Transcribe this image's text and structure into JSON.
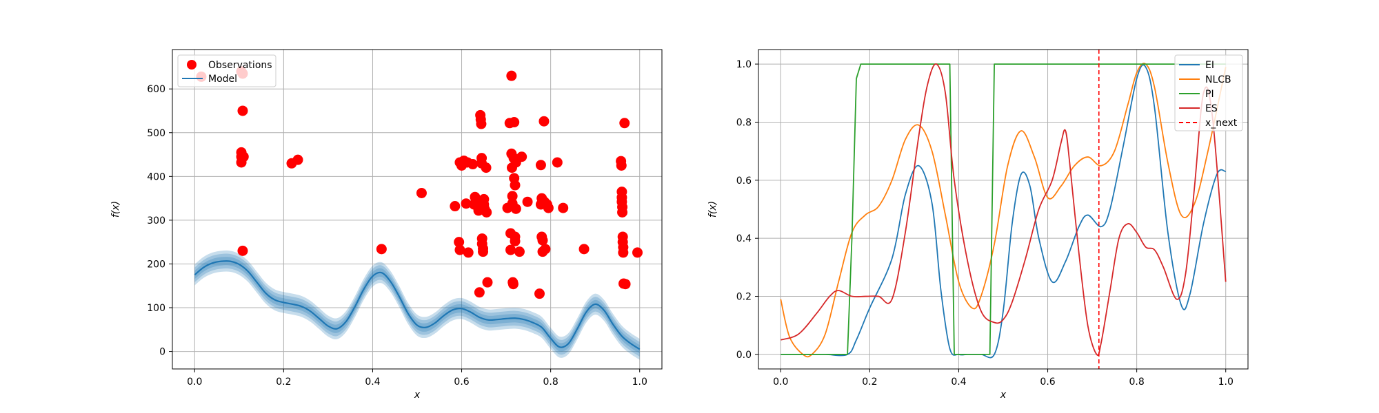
{
  "chart_data": [
    {
      "type": "scatter",
      "xlabel": "x",
      "ylabel": "f(x)",
      "xlim": [
        -0.05,
        1.05
      ],
      "ylim": [
        -40,
        690
      ],
      "xticks": [
        0.0,
        0.2,
        0.4,
        0.6,
        0.8,
        1.0
      ],
      "xtick_labels": [
        "0.0",
        "0.2",
        "0.4",
        "0.6",
        "0.8",
        "1.0"
      ],
      "yticks": [
        0,
        100,
        200,
        300,
        400,
        500,
        600
      ],
      "ytick_labels": [
        "0",
        "100",
        "200",
        "300",
        "400",
        "500",
        "600"
      ],
      "grid": true,
      "legend_position": "top-left",
      "series": [
        {
          "name": "Observations",
          "kind": "scatter",
          "color": "#ff0000",
          "points": [
            [
              0.015,
              628
            ],
            [
              0.105,
              640
            ],
            [
              0.108,
              635
            ],
            [
              0.108,
              550
            ],
            [
              0.105,
              455
            ],
            [
              0.105,
              445
            ],
            [
              0.11,
              445
            ],
            [
              0.105,
              432
            ],
            [
              0.108,
              230
            ],
            [
              0.218,
              430
            ],
            [
              0.232,
              438
            ],
            [
              0.42,
              234
            ],
            [
              0.51,
              362
            ],
            [
              0.585,
              332
            ],
            [
              0.594,
              250
            ],
            [
              0.596,
              232
            ],
            [
              0.596,
              432
            ],
            [
              0.6,
              425
            ],
            [
              0.605,
              436
            ],
            [
              0.61,
              338
            ],
            [
              0.613,
              432
            ],
            [
              0.615,
              226
            ],
            [
              0.625,
              428
            ],
            [
              0.628,
              336
            ],
            [
              0.63,
              353
            ],
            [
              0.632,
              344
            ],
            [
              0.635,
              332
            ],
            [
              0.638,
              322
            ],
            [
              0.64,
              135
            ],
            [
              0.642,
              540
            ],
            [
              0.643,
              530
            ],
            [
              0.644,
              520
            ],
            [
              0.645,
              430
            ],
            [
              0.645,
              442
            ],
            [
              0.646,
              258
            ],
            [
              0.646,
              246
            ],
            [
              0.648,
              235
            ],
            [
              0.648,
              228
            ],
            [
              0.65,
              348
            ],
            [
              0.65,
              336
            ],
            [
              0.652,
              325
            ],
            [
              0.655,
              420
            ],
            [
              0.656,
              318
            ],
            [
              0.658,
              158
            ],
            [
              0.703,
              328
            ],
            [
              0.708,
              522
            ],
            [
              0.71,
              270
            ],
            [
              0.71,
              232
            ],
            [
              0.712,
              630
            ],
            [
              0.712,
              452
            ],
            [
              0.713,
              420
            ],
            [
              0.714,
              355
            ],
            [
              0.714,
              338
            ],
            [
              0.715,
              158
            ],
            [
              0.716,
              154
            ],
            [
              0.717,
              442
            ],
            [
              0.718,
              524
            ],
            [
              0.718,
              396
            ],
            [
              0.72,
              380
            ],
            [
              0.72,
              262
            ],
            [
              0.72,
              252
            ],
            [
              0.722,
              432
            ],
            [
              0.722,
              326
            ],
            [
              0.73,
              228
            ],
            [
              0.735,
              445
            ],
            [
              0.748,
              342
            ],
            [
              0.775,
              132
            ],
            [
              0.778,
              426
            ],
            [
              0.778,
              336
            ],
            [
              0.78,
              350
            ],
            [
              0.78,
              262
            ],
            [
              0.782,
              254
            ],
            [
              0.782,
              228
            ],
            [
              0.785,
              526
            ],
            [
              0.786,
              342
            ],
            [
              0.788,
              234
            ],
            [
              0.792,
              336
            ],
            [
              0.795,
              328
            ],
            [
              0.815,
              432
            ],
            [
              0.828,
              328
            ],
            [
              0.875,
              234
            ],
            [
              0.958,
              435
            ],
            [
              0.959,
              425
            ],
            [
              0.96,
              365
            ],
            [
              0.96,
              352
            ],
            [
              0.96,
              342
            ],
            [
              0.961,
              330
            ],
            [
              0.961,
              318
            ],
            [
              0.962,
              262
            ],
            [
              0.962,
              250
            ],
            [
              0.963,
              238
            ],
            [
              0.963,
              226
            ],
            [
              0.964,
              155
            ],
            [
              0.966,
              522
            ],
            [
              0.968,
              154
            ],
            [
              0.995,
              226
            ]
          ]
        },
        {
          "name": "Model",
          "kind": "line",
          "color": "#1f77b4",
          "confidence_band_color": "#1f77b4",
          "x": [
            0.0,
            0.02,
            0.04,
            0.06,
            0.08,
            0.1,
            0.12,
            0.14,
            0.16,
            0.18,
            0.2,
            0.22,
            0.24,
            0.26,
            0.28,
            0.3,
            0.32,
            0.34,
            0.36,
            0.38,
            0.4,
            0.42,
            0.44,
            0.46,
            0.48,
            0.5,
            0.52,
            0.54,
            0.56,
            0.58,
            0.6,
            0.62,
            0.64,
            0.66,
            0.68,
            0.7,
            0.72,
            0.74,
            0.76,
            0.78,
            0.8,
            0.82,
            0.84,
            0.86,
            0.88,
            0.9,
            0.92,
            0.94,
            0.96,
            0.98,
            1.0
          ],
          "y": [
            175,
            192,
            202,
            206,
            206,
            199,
            183,
            158,
            133,
            118,
            112,
            108,
            103,
            92,
            75,
            58,
            52,
            68,
            102,
            142,
            172,
            180,
            160,
            125,
            86,
            60,
            55,
            65,
            82,
            95,
            98,
            90,
            78,
            72,
            73,
            75,
            76,
            73,
            66,
            55,
            30,
            10,
            18,
            52,
            90,
            108,
            94,
            62,
            35,
            18,
            5
          ],
          "band_halfwidth": 12
        }
      ]
    },
    {
      "type": "line",
      "xlabel": "x",
      "ylabel": "f(x)",
      "xlim": [
        -0.05,
        1.05
      ],
      "ylim": [
        -0.05,
        1.05
      ],
      "xticks": [
        0.0,
        0.2,
        0.4,
        0.6,
        0.8,
        1.0
      ],
      "xtick_labels": [
        "0.0",
        "0.2",
        "0.4",
        "0.6",
        "0.8",
        "1.0"
      ],
      "yticks": [
        0.0,
        0.2,
        0.4,
        0.6,
        0.8,
        1.0
      ],
      "ytick_labels": [
        "0.0",
        "0.2",
        "0.4",
        "0.6",
        "0.8",
        "1.0"
      ],
      "grid": true,
      "legend_position": "top-right",
      "series": [
        {
          "name": "EI",
          "color": "#1f77b4",
          "x": [
            0.0,
            0.05,
            0.1,
            0.15,
            0.17,
            0.2,
            0.25,
            0.28,
            0.31,
            0.34,
            0.36,
            0.38,
            0.4,
            0.42,
            0.45,
            0.48,
            0.5,
            0.52,
            0.54,
            0.56,
            0.58,
            0.61,
            0.64,
            0.67,
            0.69,
            0.72,
            0.74,
            0.77,
            0.8,
            0.82,
            0.84,
            0.87,
            0.9,
            0.92,
            0.95,
            0.98,
            1.0
          ],
          "y": [
            0.0,
            0.0,
            0.0,
            0.0,
            0.05,
            0.16,
            0.33,
            0.55,
            0.65,
            0.52,
            0.22,
            0.02,
            0.0,
            0.0,
            0.0,
            0.0,
            0.15,
            0.45,
            0.62,
            0.58,
            0.4,
            0.25,
            0.32,
            0.44,
            0.48,
            0.44,
            0.5,
            0.72,
            0.95,
            0.99,
            0.85,
            0.42,
            0.17,
            0.21,
            0.45,
            0.62,
            0.63
          ]
        },
        {
          "name": "NLCB",
          "color": "#ff7f0e",
          "x": [
            0.0,
            0.02,
            0.05,
            0.07,
            0.1,
            0.13,
            0.16,
            0.19,
            0.22,
            0.25,
            0.28,
            0.31,
            0.34,
            0.37,
            0.4,
            0.43,
            0.45,
            0.48,
            0.51,
            0.54,
            0.57,
            0.6,
            0.63,
            0.66,
            0.69,
            0.72,
            0.75,
            0.78,
            0.8,
            0.82,
            0.84,
            0.87,
            0.9,
            0.93,
            0.96,
            1.0
          ],
          "y": [
            0.19,
            0.06,
            0.0,
            0.0,
            0.07,
            0.25,
            0.42,
            0.48,
            0.51,
            0.6,
            0.74,
            0.79,
            0.7,
            0.48,
            0.25,
            0.16,
            0.2,
            0.38,
            0.65,
            0.77,
            0.68,
            0.54,
            0.58,
            0.65,
            0.68,
            0.65,
            0.7,
            0.86,
            0.97,
            1.0,
            0.92,
            0.66,
            0.48,
            0.52,
            0.7,
            0.99
          ]
        },
        {
          "name": "PI",
          "color": "#2ca02c",
          "x": [
            0.0,
            0.15,
            0.16,
            0.17,
            0.18,
            0.38,
            0.385,
            0.39,
            0.47,
            0.475,
            0.48,
            1.0
          ],
          "y": [
            0.0,
            0.0,
            0.4,
            0.95,
            1.0,
            1.0,
            0.5,
            0.0,
            0.0,
            0.5,
            1.0,
            1.0
          ]
        },
        {
          "name": "ES",
          "color": "#d62728",
          "x": [
            0.0,
            0.04,
            0.08,
            0.11,
            0.13,
            0.16,
            0.19,
            0.22,
            0.25,
            0.28,
            0.31,
            0.33,
            0.35,
            0.37,
            0.39,
            0.42,
            0.45,
            0.48,
            0.5,
            0.52,
            0.55,
            0.58,
            0.61,
            0.63,
            0.64,
            0.65,
            0.67,
            0.69,
            0.71,
            0.72,
            0.74,
            0.76,
            0.78,
            0.8,
            0.82,
            0.84,
            0.86,
            0.89,
            0.91,
            0.93,
            0.95,
            0.97,
            1.0
          ],
          "y": [
            0.05,
            0.07,
            0.14,
            0.2,
            0.22,
            0.2,
            0.2,
            0.2,
            0.19,
            0.42,
            0.75,
            0.93,
            1.0,
            0.9,
            0.6,
            0.32,
            0.15,
            0.11,
            0.12,
            0.18,
            0.33,
            0.5,
            0.6,
            0.73,
            0.77,
            0.65,
            0.35,
            0.1,
            0.0,
            0.04,
            0.22,
            0.4,
            0.45,
            0.42,
            0.37,
            0.36,
            0.3,
            0.19,
            0.28,
            0.58,
            0.9,
            0.82,
            0.25
          ]
        },
        {
          "name": "x_next",
          "color": "#ff0000",
          "kind": "vline",
          "dashed": true,
          "x_value": 0.715
        }
      ]
    }
  ]
}
